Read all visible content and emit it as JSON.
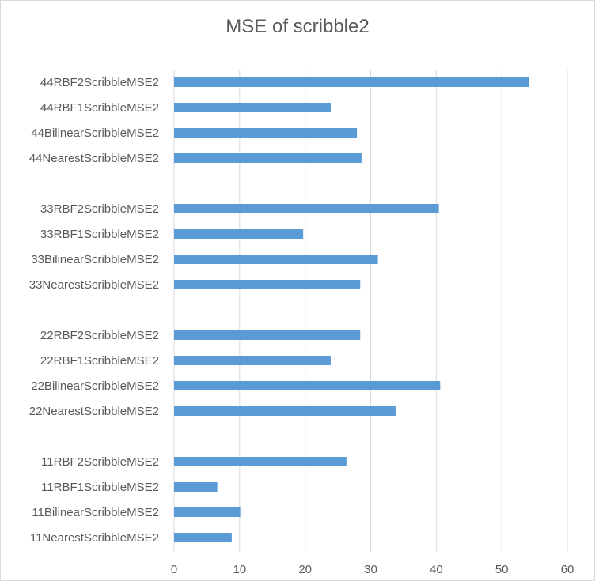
{
  "chart_data": {
    "type": "bar",
    "orientation": "horizontal",
    "title": "MSE of scribble2",
    "xlabel": "",
    "ylabel": "",
    "xlim": [
      0,
      60
    ],
    "xticks": [
      0,
      10,
      20,
      30,
      40,
      50,
      60
    ],
    "grid": "vertical",
    "legend": "none",
    "bar_color": "#5b9bd5",
    "groups": [
      {
        "categories": [
          "44RBF2ScribbleMSE2",
          "44RBF1ScribbleMSE2",
          "44BilinearScribbleMSE2",
          "44NearestScribbleMSE2"
        ],
        "values": [
          54.2,
          23.9,
          27.9,
          28.6
        ]
      },
      {
        "categories": [
          "33RBF2ScribbleMSE2",
          "33RBF1ScribbleMSE2",
          "33BilinearScribbleMSE2",
          "33NearestScribbleMSE2"
        ],
        "values": [
          40.4,
          19.7,
          31.1,
          28.4
        ]
      },
      {
        "categories": [
          "22RBF2ScribbleMSE2",
          "22RBF1ScribbleMSE2",
          "22BilinearScribbleMSE2",
          "22NearestScribbleMSE2"
        ],
        "values": [
          28.4,
          23.9,
          40.6,
          33.8
        ]
      },
      {
        "categories": [
          "11RBF2ScribbleMSE2",
          "11RBF1ScribbleMSE2",
          "11BilinearScribbleMSE2",
          "11NearestScribbleMSE2"
        ],
        "values": [
          26.3,
          6.6,
          10.1,
          8.8
        ]
      }
    ]
  }
}
